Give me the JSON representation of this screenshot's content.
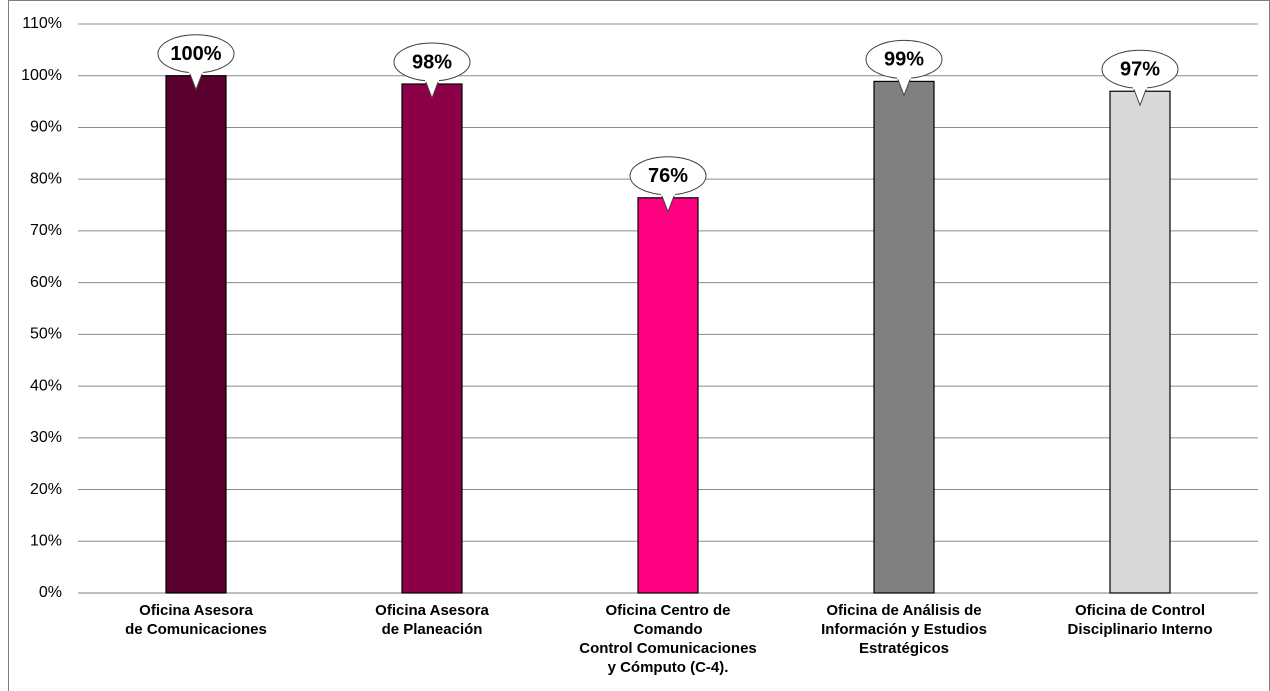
{
  "chart_data": {
    "type": "bar",
    "categories": [
      [
        "Oficina Asesora",
        "de Comunicaciones"
      ],
      [
        "Oficina Asesora",
        "de Planeación"
      ],
      [
        "Oficina Centro de",
        "Comando",
        "Control Comunicaciones",
        "y Cómputo (C-4)."
      ],
      [
        "Oficina de Análisis de",
        "Información y Estudios",
        "Estratégicos"
      ],
      [
        "Oficina de Control",
        "Disciplinario Interno"
      ]
    ],
    "values": [
      100,
      98.4,
      76.4,
      98.9,
      97
    ],
    "value_labels": [
      "100%",
      "98%",
      "76%",
      "99%",
      "97%"
    ],
    "colors": [
      "#5c0030",
      "#8b0046",
      "#ff0080",
      "#808080",
      "#d9d9d9"
    ],
    "ylim": [
      0,
      110
    ],
    "yticks": [
      {
        "value": 0,
        "label": "0%"
      },
      {
        "value": 10,
        "label": "10%"
      },
      {
        "value": 20,
        "label": "20%"
      },
      {
        "value": 30,
        "label": "30%"
      },
      {
        "value": 40,
        "label": "40%"
      },
      {
        "value": 50,
        "label": "50%"
      },
      {
        "value": 60,
        "label": "60%"
      },
      {
        "value": 70,
        "label": "70%"
      },
      {
        "value": 80,
        "label": "80%"
      },
      {
        "value": 90,
        "label": "90%"
      },
      {
        "value": 100,
        "label": "100%"
      },
      {
        "value": 110,
        "label": "110%"
      }
    ],
    "grid": true
  }
}
